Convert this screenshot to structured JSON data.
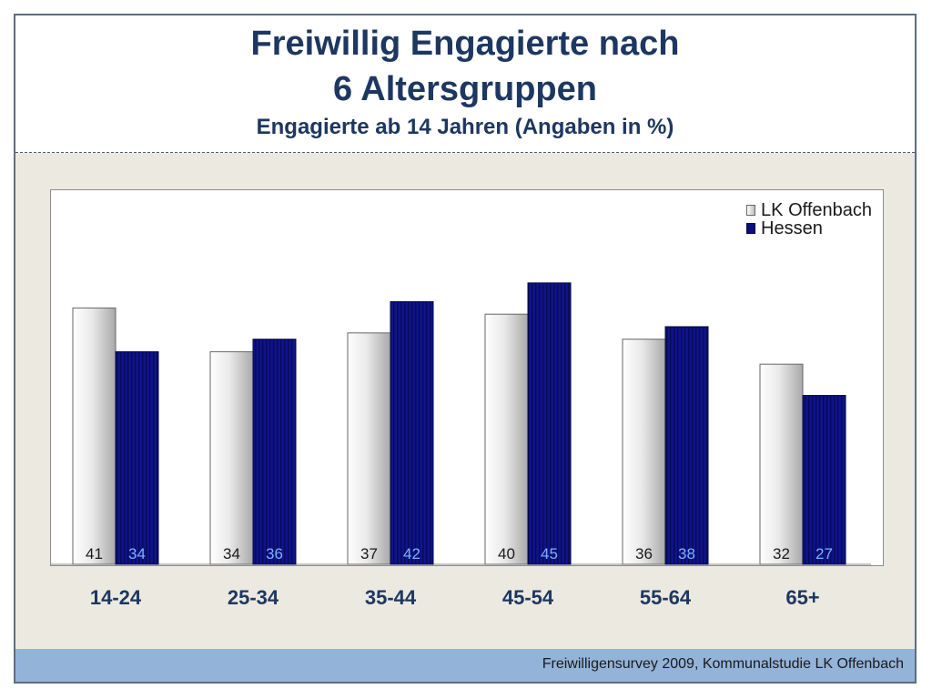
{
  "title_line1": "Freiwillig Engagierte nach",
  "title_line2": "6 Altersgruppen",
  "subtitle": "Engagierte ab 14 Jahren (Angaben in %)",
  "footer": "Freiwilligensurvey 2009, Kommunalstudie LK Offenbach",
  "colors": {
    "lk_offenbach": "#e6e6e6",
    "hessen": "#0b0f7e",
    "title": "#1d3760",
    "footer_bar": "#93b3d9",
    "background": "#ece9e1"
  },
  "chart_data": {
    "type": "bar",
    "categories": [
      "14-24",
      "25-34",
      "35-44",
      "45-54",
      "55-64",
      "65+"
    ],
    "series": [
      {
        "name": "LK Offenbach",
        "values": [
          41,
          34,
          37,
          40,
          36,
          32
        ]
      },
      {
        "name": "Hessen",
        "values": [
          34,
          36,
          42,
          45,
          38,
          27
        ]
      }
    ],
    "ylim": [
      0,
      60
    ],
    "grid": false,
    "legend": "top-right",
    "data_labels": "bottom-inside"
  }
}
